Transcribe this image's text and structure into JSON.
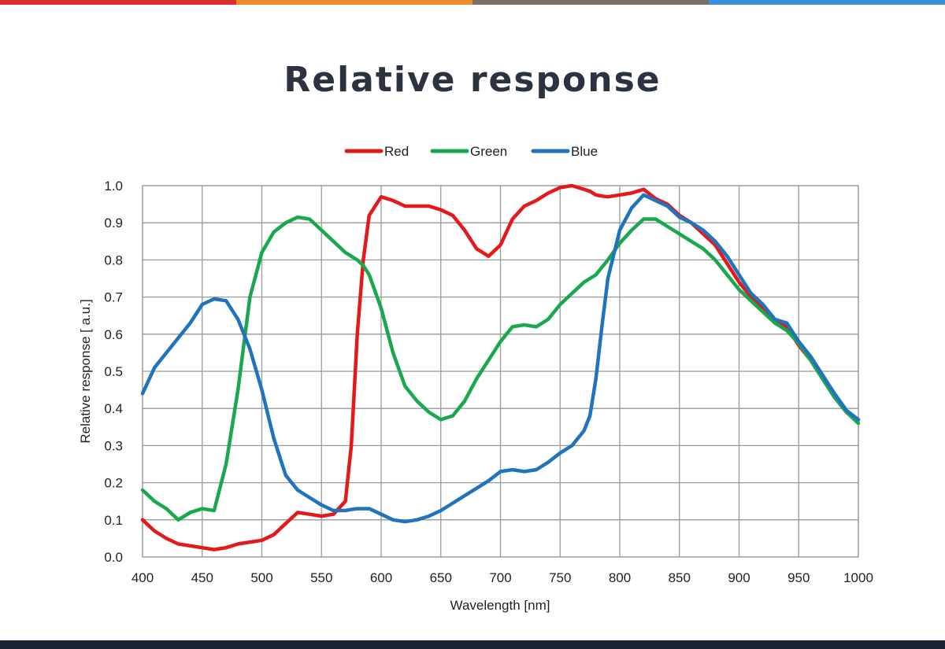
{
  "header": {
    "title": "Relative response",
    "stripe_colors": [
      "#d9302f",
      "#ec8a2c",
      "#7b7068",
      "#3a8fdb"
    ],
    "footer_color": "#1b2333"
  },
  "chart_data": {
    "type": "line",
    "title": "",
    "xlabel": "Wavelength [nm]",
    "ylabel": "Relative response [ a.u.]",
    "xlim": [
      400,
      1000
    ],
    "ylim": [
      0,
      1.0
    ],
    "xticks": [
      400,
      450,
      500,
      550,
      600,
      650,
      700,
      750,
      800,
      850,
      900,
      950,
      1000
    ],
    "yticks": [
      "0.0",
      "0.1",
      "0.2",
      "0.3",
      "0.4",
      "0.5",
      "0.6",
      "0.7",
      "0.8",
      "0.9",
      "1.0"
    ],
    "grid": true,
    "legend_position": "top-center",
    "x": [
      400,
      410,
      420,
      430,
      440,
      450,
      460,
      470,
      480,
      490,
      500,
      510,
      520,
      530,
      540,
      550,
      560,
      570,
      575,
      580,
      585,
      590,
      600,
      610,
      620,
      630,
      640,
      650,
      660,
      670,
      680,
      690,
      700,
      710,
      720,
      730,
      740,
      750,
      760,
      770,
      775,
      780,
      785,
      790,
      800,
      810,
      820,
      830,
      840,
      850,
      860,
      870,
      880,
      890,
      900,
      910,
      920,
      930,
      940,
      950,
      960,
      970,
      980,
      990,
      1000
    ],
    "series": [
      {
        "name": "Red",
        "color": "#e3191c",
        "values": [
          0.1,
          0.07,
          0.05,
          0.035,
          0.03,
          0.025,
          0.02,
          0.025,
          0.035,
          0.04,
          0.045,
          0.06,
          0.09,
          0.12,
          0.115,
          0.11,
          0.115,
          0.15,
          0.3,
          0.6,
          0.8,
          0.92,
          0.97,
          0.96,
          0.945,
          0.945,
          0.945,
          0.935,
          0.92,
          0.88,
          0.83,
          0.81,
          0.84,
          0.91,
          0.945,
          0.96,
          0.98,
          0.995,
          1.0,
          0.99,
          0.985,
          0.975,
          0.972,
          0.97,
          0.975,
          0.98,
          0.99,
          0.965,
          0.95,
          0.92,
          0.9,
          0.87,
          0.84,
          0.79,
          0.74,
          0.7,
          0.67,
          0.64,
          0.62,
          0.57,
          0.53,
          0.48,
          0.43,
          0.39,
          0.37
        ]
      },
      {
        "name": "Green",
        "color": "#1aa84f",
        "values": [
          0.18,
          0.15,
          0.13,
          0.1,
          0.12,
          0.13,
          0.125,
          0.25,
          0.45,
          0.7,
          0.82,
          0.875,
          0.9,
          0.915,
          0.91,
          0.88,
          0.85,
          0.82,
          0.81,
          0.8,
          0.785,
          0.76,
          0.67,
          0.55,
          0.46,
          0.42,
          0.39,
          0.37,
          0.38,
          0.42,
          0.48,
          0.53,
          0.58,
          0.62,
          0.625,
          0.62,
          0.64,
          0.68,
          0.71,
          0.74,
          0.75,
          0.76,
          0.78,
          0.8,
          0.845,
          0.88,
          0.91,
          0.91,
          0.89,
          0.87,
          0.85,
          0.83,
          0.8,
          0.76,
          0.72,
          0.69,
          0.66,
          0.63,
          0.61,
          0.575,
          0.53,
          0.48,
          0.43,
          0.39,
          0.36
        ]
      },
      {
        "name": "Blue",
        "color": "#1f74bc",
        "values": [
          0.44,
          0.51,
          0.55,
          0.59,
          0.63,
          0.68,
          0.695,
          0.69,
          0.64,
          0.56,
          0.45,
          0.32,
          0.22,
          0.18,
          0.16,
          0.14,
          0.125,
          0.125,
          0.128,
          0.13,
          0.13,
          0.13,
          0.115,
          0.1,
          0.095,
          0.1,
          0.11,
          0.125,
          0.145,
          0.165,
          0.185,
          0.205,
          0.23,
          0.235,
          0.23,
          0.235,
          0.255,
          0.28,
          0.3,
          0.34,
          0.38,
          0.48,
          0.62,
          0.75,
          0.88,
          0.94,
          0.975,
          0.96,
          0.945,
          0.915,
          0.9,
          0.88,
          0.85,
          0.81,
          0.76,
          0.71,
          0.68,
          0.64,
          0.63,
          0.58,
          0.54,
          0.49,
          0.44,
          0.395,
          0.37
        ]
      }
    ]
  }
}
